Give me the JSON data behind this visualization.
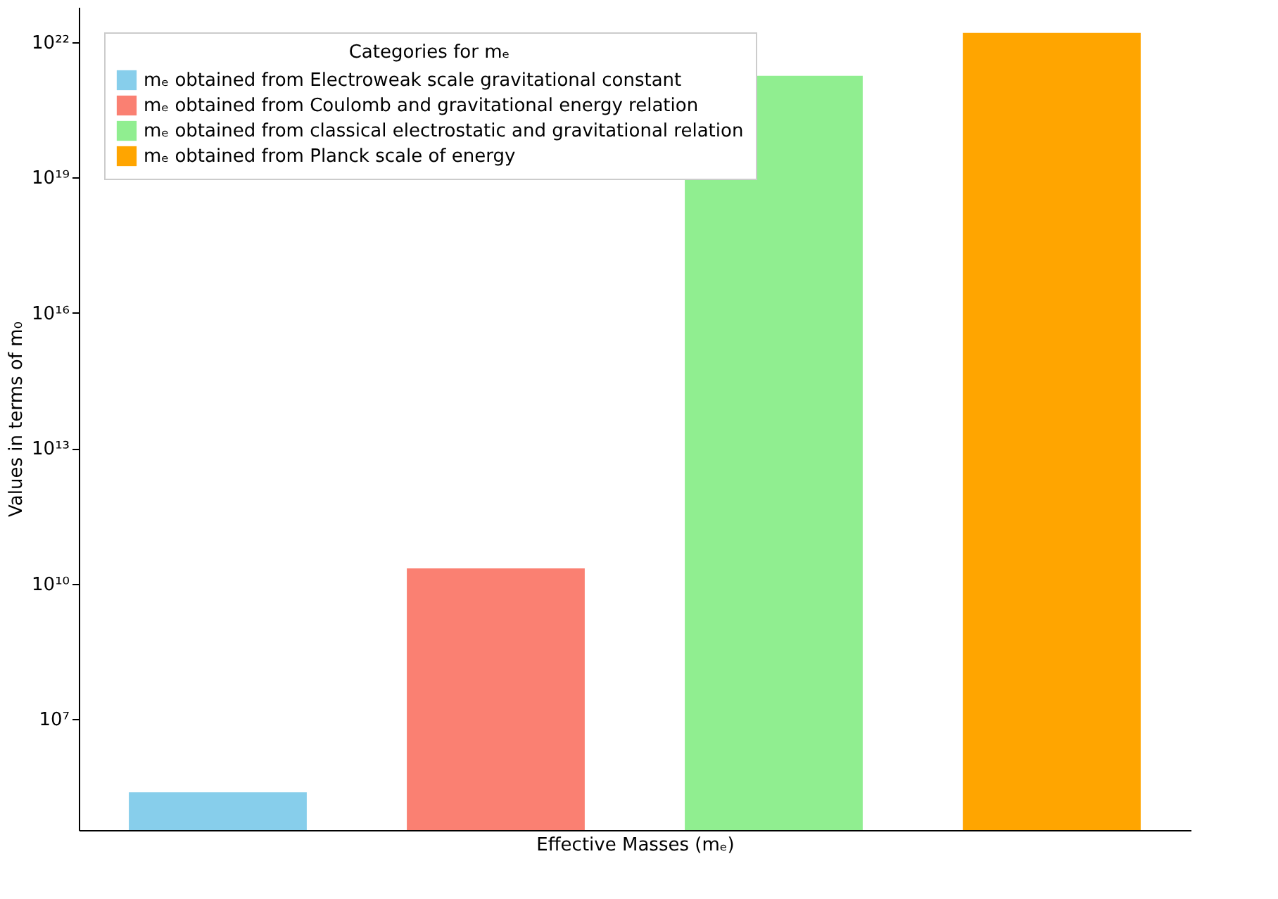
{
  "chart_data": {
    "type": "bar",
    "xlabel": "Effective Masses (mₑ)",
    "ylabel": "Values in terms of m₀",
    "legend_title": "Categories for mₑ",
    "categories": [
      null,
      null,
      null,
      null
    ],
    "series": [
      {
        "name": "mₑ obtained from Electroweak scale gravitational constant",
        "color": "#87ceeb",
        "values": [
          240000,
          null,
          null,
          null
        ]
      },
      {
        "name": "mₑ obtained from Coulomb and gravitational energy relation",
        "color": "#fa8072",
        "values": [
          null,
          22000000000,
          null,
          null
        ]
      },
      {
        "name": "mₑ obtained from classical electrostatic and gravitational relation",
        "color": "#90ee90",
        "values": [
          null,
          null,
          1.8e+21,
          null
        ]
      },
      {
        "name": "mₑ obtained from Planck scale of energy",
        "color": "#ffa500",
        "values": [
          null,
          null,
          null,
          1.6e+22
        ]
      }
    ],
    "log": "y",
    "ylim": [
      35000,
      6e+22
    ],
    "yticks": [
      {
        "value": 10000000.0,
        "label": "10⁷"
      },
      {
        "value": 10000000000.0,
        "label": "10¹⁰"
      },
      {
        "value": 10000000000000.0,
        "label": "10¹³"
      },
      {
        "value": 1e+16,
        "label": "10¹⁶"
      },
      {
        "value": 1e+19,
        "label": "10¹⁹"
      },
      {
        "value": 1e+22,
        "label": "10²²"
      }
    ],
    "tick_labels": "y",
    "grid": false,
    "legend": "top left"
  }
}
